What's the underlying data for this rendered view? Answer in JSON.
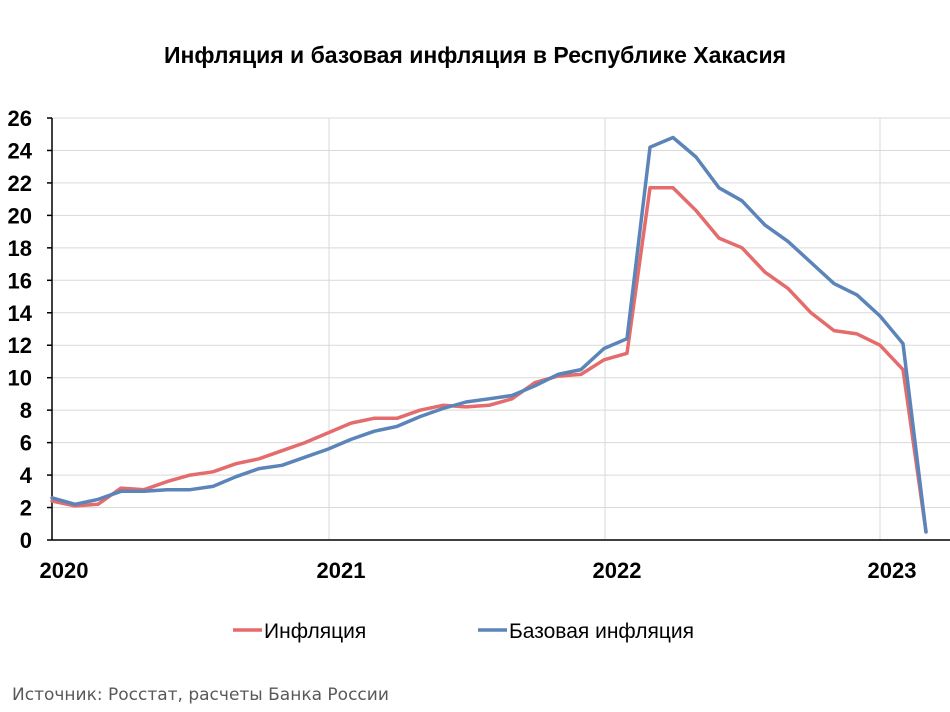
{
  "chart_data": {
    "type": "line",
    "title": "Инфляция и базовая инфляция в Республике Хакасия",
    "ylim": [
      0,
      26
    ],
    "y_ticks": [
      0,
      2,
      4,
      6,
      8,
      10,
      12,
      14,
      16,
      18,
      20,
      22,
      24,
      26
    ],
    "x_ticks": [
      "2020",
      "2021",
      "2022",
      "2023"
    ],
    "grid": true,
    "legend_position": "bottom",
    "colors": {
      "inflation": "#E46C6C",
      "core": "#5B84B8"
    },
    "series": [
      {
        "name": "Инфляция",
        "color": "#E46C6C",
        "values": [
          2.4,
          2.1,
          2.2,
          3.2,
          3.1,
          3.6,
          4.0,
          4.2,
          4.7,
          5.0,
          5.5,
          6.0,
          6.6,
          7.2,
          7.5,
          7.5,
          8.0,
          8.3,
          8.2,
          8.3,
          8.7,
          9.7,
          10.1,
          10.2,
          11.1,
          11.5,
          21.7,
          21.7,
          20.3,
          18.6,
          18.0,
          16.5,
          15.5,
          14.0,
          12.9,
          12.7,
          12.0,
          10.5,
          0.5
        ]
      },
      {
        "name": "Базовая инфляция",
        "color": "#5B84B8",
        "values": [
          2.6,
          2.2,
          2.5,
          3.0,
          3.0,
          3.1,
          3.1,
          3.3,
          3.9,
          4.4,
          4.6,
          5.1,
          5.6,
          6.2,
          6.7,
          7.0,
          7.6,
          8.1,
          8.5,
          8.7,
          8.9,
          9.5,
          10.2,
          10.5,
          11.8,
          12.4,
          24.2,
          24.8,
          23.6,
          21.7,
          20.9,
          19.4,
          18.4,
          17.1,
          15.8,
          15.1,
          13.8,
          12.1,
          0.5
        ]
      }
    ],
    "x_start_label": "2020"
  },
  "source": "Источник: Росстат, расчеты Банка России"
}
